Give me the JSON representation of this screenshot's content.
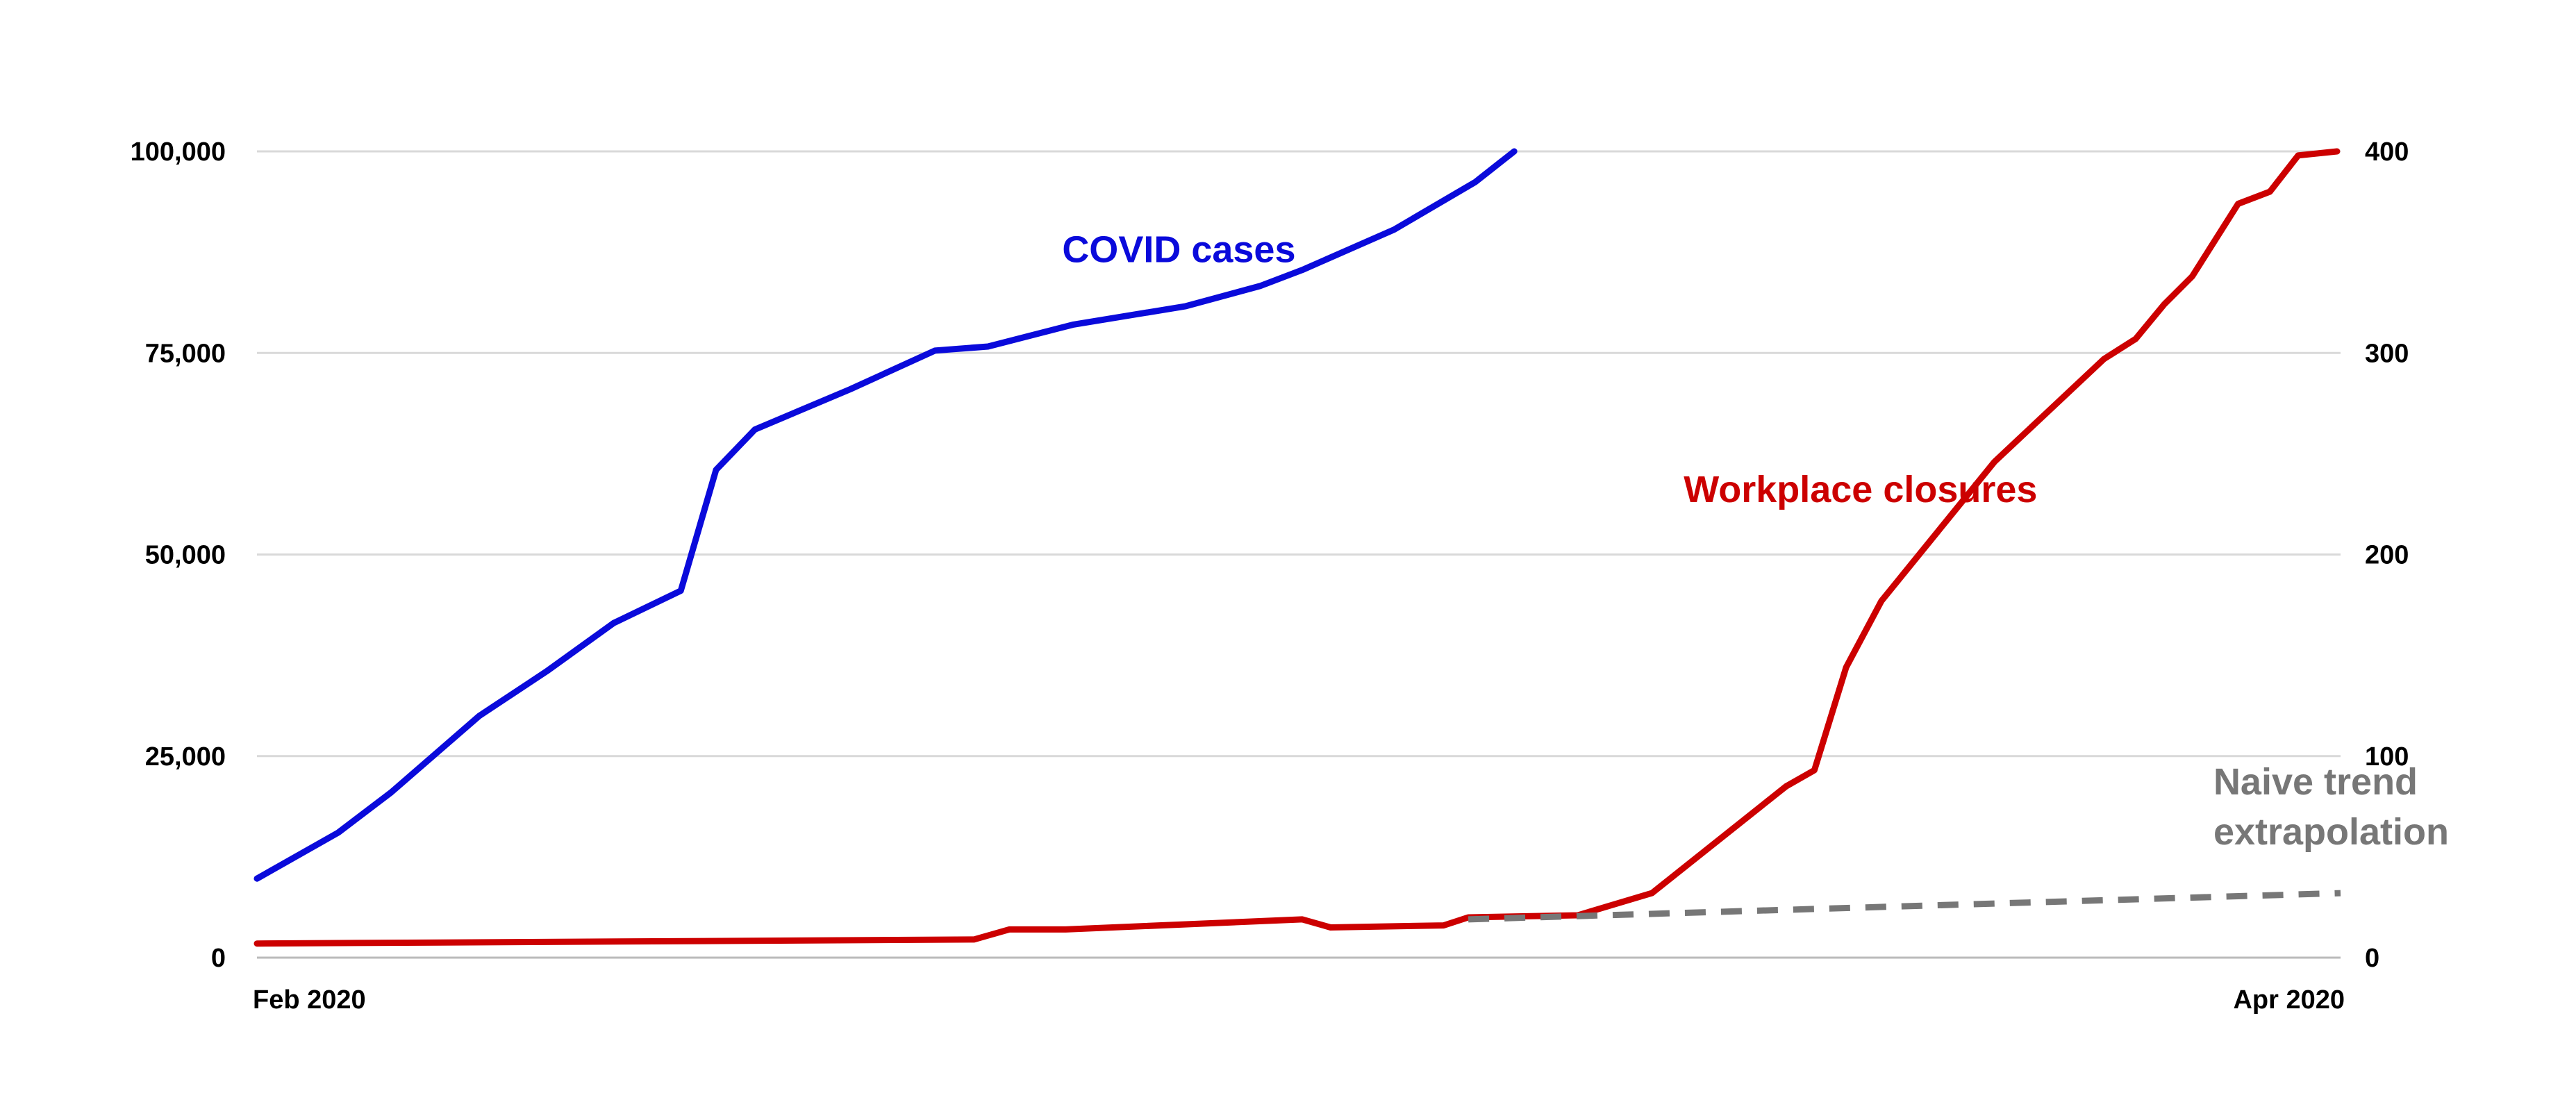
{
  "chart_data": {
    "type": "line",
    "title": "",
    "xlabel": "",
    "ylabel": "",
    "grid": true,
    "x_range": [
      0,
      59
    ],
    "x_tick_labels": [
      {
        "x": 0,
        "label": "Feb 2020"
      },
      {
        "x": 59,
        "label": "Apr 2020"
      }
    ],
    "y_left": {
      "range": [
        0,
        100000
      ],
      "ticks": [
        0,
        25000,
        50000,
        75000,
        100000
      ],
      "tick_labels": [
        "0",
        "25,000",
        "50,000",
        "75,000",
        "100,000"
      ]
    },
    "y_right": {
      "range": [
        0,
        400
      ],
      "ticks": [
        0,
        100,
        200,
        300,
        400
      ],
      "tick_labels": [
        "0",
        "100",
        "200",
        "300",
        "400"
      ]
    },
    "series": [
      {
        "name": "COVID cases",
        "axis": "left",
        "color": "#0a0adb",
        "style": "solid",
        "points": [
          [
            0,
            9800
          ],
          [
            2.3,
            15500
          ],
          [
            3.8,
            20500
          ],
          [
            6.3,
            30000
          ],
          [
            8.2,
            35500
          ],
          [
            10.1,
            41500
          ],
          [
            12.0,
            45500
          ],
          [
            13.0,
            60500
          ],
          [
            14.1,
            65500
          ],
          [
            16.8,
            70500
          ],
          [
            19.2,
            75300
          ],
          [
            20.7,
            75800
          ],
          [
            23.1,
            78500
          ],
          [
            26.3,
            80800
          ],
          [
            28.4,
            83300
          ],
          [
            29.6,
            85300
          ],
          [
            32.2,
            90300
          ],
          [
            34.5,
            96200
          ],
          [
            35.6,
            100000
          ]
        ]
      },
      {
        "name": "Workplace closures",
        "axis": "right",
        "color": "#cc0000",
        "style": "solid",
        "points": [
          [
            0,
            7
          ],
          [
            20.3,
            9
          ],
          [
            21.3,
            14
          ],
          [
            22.9,
            14
          ],
          [
            29.6,
            19
          ],
          [
            30.4,
            15
          ],
          [
            33.6,
            16
          ],
          [
            34.3,
            20
          ],
          [
            37.4,
            21
          ],
          [
            39.5,
            32
          ],
          [
            43.3,
            85
          ],
          [
            44.1,
            93
          ],
          [
            45.0,
            144
          ],
          [
            46.0,
            177
          ],
          [
            49.2,
            246
          ],
          [
            52.3,
            297
          ],
          [
            53.2,
            307
          ],
          [
            54.0,
            324
          ],
          [
            54.8,
            338
          ],
          [
            56.1,
            374
          ],
          [
            57.0,
            380
          ],
          [
            57.8,
            398
          ],
          [
            58.9,
            400
          ]
        ]
      },
      {
        "name": "Naive trend extrapolation",
        "axis": "right",
        "color": "#777777",
        "style": "dashed",
        "points": [
          [
            34.3,
            19
          ],
          [
            59,
            32
          ]
        ]
      }
    ],
    "annotations": [
      {
        "series": "COVID cases",
        "lines": [
          "COVID cases"
        ],
        "x": 22.8,
        "y_right": 345,
        "color": "#0a0adb"
      },
      {
        "series": "Workplace closures",
        "lines": [
          "Workplace closures"
        ],
        "x": 40.4,
        "y_right": 226,
        "color": "#cc0000"
      },
      {
        "series": "Naive trend extrapolation",
        "lines": [
          "Naive trend",
          "extrapolation"
        ],
        "x": 55.4,
        "y_right": 81,
        "color": "#777777"
      }
    ]
  }
}
